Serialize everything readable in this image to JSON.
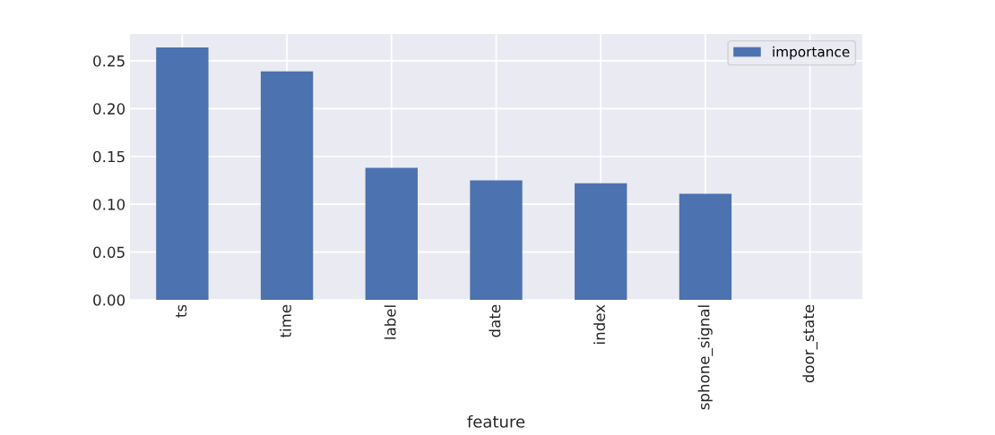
{
  "chart_data": {
    "type": "bar",
    "xlabel": "feature",
    "categories": [
      "ts",
      "time",
      "label",
      "date",
      "index",
      "sphone_signal",
      "door_state"
    ],
    "series": [
      {
        "name": "importance",
        "color": "#4c72b0",
        "values": [
          0.264,
          0.239,
          0.138,
          0.125,
          0.122,
          0.111,
          0.0
        ]
      }
    ],
    "ylim": [
      0,
      0.278
    ],
    "yticks": [
      {
        "value": 0,
        "label": "0.00"
      },
      {
        "value": 0.05,
        "label": "0.05"
      },
      {
        "value": 0.1,
        "label": "0.10"
      },
      {
        "value": 0.15,
        "label": "0.15"
      },
      {
        "value": 0.2,
        "label": "0.20"
      },
      {
        "value": 0.25,
        "label": "0.25"
      }
    ],
    "grid": true,
    "legend": "top right"
  }
}
